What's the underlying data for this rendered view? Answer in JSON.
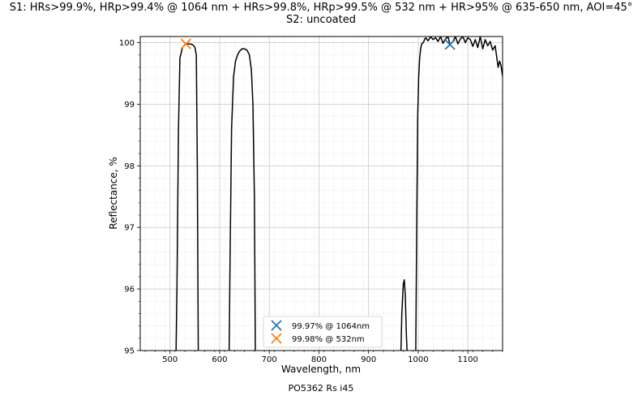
{
  "title_line1": "S1: HRs>99.9%, HRp>99.4% @ 1064 nm + HRs>99.8%, HRp>99.5% @ 532 nm + HR>95% @ 635-650 nm, AOI=45°",
  "title_line2": "S2: uncoated",
  "footer": "PO5362 Rs i45",
  "chart_data": {
    "type": "line",
    "xlabel": "Wavelength, nm",
    "ylabel": "Reflectance, %",
    "xlim": [
      440,
      1170
    ],
    "ylim": [
      95,
      100.1
    ],
    "xticks": [
      500,
      600,
      700,
      800,
      900,
      1000,
      1100
    ],
    "yticks": [
      95,
      96,
      97,
      98,
      99,
      100
    ],
    "grid": true,
    "minor_grid": true,
    "series": [
      {
        "color": "#000000",
        "x": [
          512,
          514,
          517,
          520,
          525,
          530,
          535,
          540,
          545,
          550,
          553,
          555,
          557
        ],
        "y": [
          94.9,
          96.0,
          98.6,
          99.75,
          99.92,
          99.97,
          99.98,
          99.98,
          99.97,
          99.93,
          99.8,
          98.0,
          94.9
        ]
      },
      {
        "color": "#000000",
        "x": [
          619,
          621,
          624,
          628,
          632,
          636,
          640,
          645,
          650,
          655,
          660,
          664,
          667,
          670,
          672
        ],
        "y": [
          94.9,
          96.5,
          98.6,
          99.45,
          99.7,
          99.8,
          99.86,
          99.9,
          99.9,
          99.88,
          99.8,
          99.55,
          99.0,
          97.5,
          94.9
        ]
      },
      {
        "color": "#000000",
        "x": [
          965,
          967,
          970,
          972,
          974,
          976,
          978
        ],
        "y": [
          94.9,
          95.6,
          96.08,
          96.15,
          95.9,
          95.3,
          94.9
        ]
      },
      {
        "color": "#000000",
        "x": [
          995,
          997,
          999,
          1001,
          1003,
          1005,
          1007,
          1010,
          1015,
          1020,
          1025,
          1030,
          1035,
          1040,
          1045,
          1050,
          1055,
          1060,
          1064,
          1070,
          1075,
          1080,
          1085,
          1090,
          1095,
          1100,
          1105,
          1110,
          1115,
          1120,
          1125,
          1130,
          1135,
          1140,
          1145,
          1150,
          1155,
          1158,
          1161,
          1164,
          1167,
          1170
        ],
        "y": [
          94.9,
          97.0,
          98.8,
          99.45,
          99.75,
          99.9,
          99.98,
          100.0,
          100.08,
          100.03,
          100.1,
          100.05,
          100.08,
          100.02,
          100.1,
          99.99,
          100.06,
          100.1,
          99.97,
          100.02,
          100.1,
          99.98,
          100.06,
          100.1,
          100.0,
          100.08,
          100.05,
          99.94,
          100.05,
          99.92,
          100.1,
          99.9,
          100.05,
          99.95,
          100.02,
          99.88,
          99.95,
          99.78,
          99.6,
          99.7,
          99.62,
          99.45
        ]
      }
    ],
    "markers": [
      {
        "name": "99.97% @ 1064nm",
        "x": 1064,
        "y": 99.97,
        "color": "#1f77b4",
        "symbol": "x"
      },
      {
        "name": "99.98% @ 532nm",
        "x": 532,
        "y": 99.98,
        "color": "#ff7f0e",
        "symbol": "x"
      }
    ],
    "legend_position": "lower center"
  }
}
